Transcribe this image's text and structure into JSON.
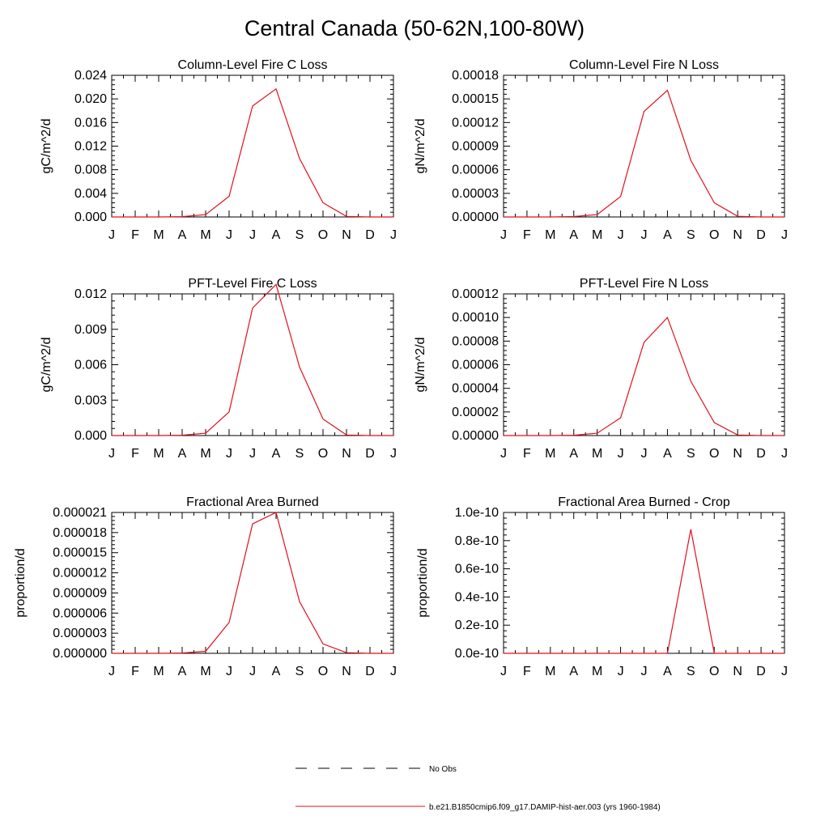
{
  "page": {
    "title": "Central Canada (50-62N,100-80W)"
  },
  "legend": {
    "entries": [
      {
        "label": "No Obs",
        "style": "dashed",
        "color": "#000000"
      },
      {
        "label": "b.e21.B1850cmip6.f09_g17.DAMIP-hist-aer.003 (yrs 1960-1984)",
        "style": "solid",
        "color": "#e0101b"
      }
    ]
  },
  "chart_data": [
    {
      "type": "line",
      "title": "Column-Level Fire C Loss",
      "ylabel": "gC/m^2/d",
      "categories": [
        "J",
        "F",
        "M",
        "A",
        "M",
        "J",
        "J",
        "A",
        "S",
        "O",
        "N",
        "D",
        "J"
      ],
      "ylim": [
        0,
        0.024
      ],
      "yticks": [
        "0.000",
        "0.004",
        "0.008",
        "0.012",
        "0.016",
        "0.020",
        "0.024"
      ],
      "series": [
        {
          "color": "#e0101b",
          "values": [
            0,
            0,
            0,
            5e-05,
            0.0004,
            0.0035,
            0.0188,
            0.0217,
            0.0099,
            0.0024,
            0.0001,
            0,
            0
          ]
        }
      ]
    },
    {
      "type": "line",
      "title": "Column-Level Fire N Loss",
      "ylabel": "gN/m^2/d",
      "categories": [
        "J",
        "F",
        "M",
        "A",
        "M",
        "J",
        "J",
        "A",
        "S",
        "O",
        "N",
        "D",
        "J"
      ],
      "ylim": [
        0,
        0.00018
      ],
      "yticks": [
        "0.00000",
        "0.00003",
        "0.00006",
        "0.00009",
        "0.00012",
        "0.00015",
        "0.00018"
      ],
      "series": [
        {
          "color": "#e0101b",
          "values": [
            0,
            0,
            0,
            5e-07,
            3e-06,
            2.6e-05,
            0.000134,
            0.000161,
            7.2e-05,
            1.8e-05,
            8e-07,
            0,
            0
          ]
        }
      ]
    },
    {
      "type": "line",
      "title": "PFT-Level Fire C Loss",
      "ylabel": "gC/m^2/d",
      "categories": [
        "J",
        "F",
        "M",
        "A",
        "M",
        "J",
        "J",
        "A",
        "S",
        "O",
        "N",
        "D",
        "J"
      ],
      "ylim": [
        0,
        0.012
      ],
      "yticks": [
        "0.000",
        "0.003",
        "0.006",
        "0.009",
        "0.012"
      ],
      "series": [
        {
          "color": "#e0101b",
          "values": [
            0,
            0,
            0,
            3e-05,
            0.0002,
            0.002,
            0.0108,
            0.0128,
            0.0058,
            0.0014,
            5e-05,
            0,
            0
          ]
        }
      ]
    },
    {
      "type": "line",
      "title": "PFT-Level Fire N Loss",
      "ylabel": "gN/m^2/d",
      "categories": [
        "J",
        "F",
        "M",
        "A",
        "M",
        "J",
        "J",
        "A",
        "S",
        "O",
        "N",
        "D",
        "J"
      ],
      "ylim": [
        0,
        0.00012
      ],
      "yticks": [
        "0.00000",
        "0.00002",
        "0.00004",
        "0.00006",
        "0.00008",
        "0.00010",
        "0.00012"
      ],
      "series": [
        {
          "color": "#e0101b",
          "values": [
            0,
            0,
            0,
            3e-07,
            2e-06,
            1.5e-05,
            7.9e-05,
            0.0001,
            4.6e-05,
            1.1e-05,
            5e-07,
            0,
            0
          ]
        }
      ]
    },
    {
      "type": "line",
      "title": "Fractional Area Burned",
      "ylabel": "proportion/d",
      "categories": [
        "J",
        "F",
        "M",
        "A",
        "M",
        "J",
        "J",
        "A",
        "S",
        "O",
        "N",
        "D",
        "J"
      ],
      "ylim": [
        0,
        2.1e-05
      ],
      "yticks": [
        "0.000000",
        "0.000003",
        "0.000006",
        "0.000009",
        "0.000012",
        "0.000015",
        "0.000018",
        "0.000021"
      ],
      "series": [
        {
          "color": "#e0101b",
          "values": [
            0,
            0,
            0,
            5e-08,
            3e-07,
            4.6e-06,
            1.93e-05,
            2.1e-05,
            7.7e-06,
            1.4e-06,
            1e-07,
            0,
            0
          ]
        }
      ]
    },
    {
      "type": "line",
      "title": "Fractional Area Burned - Crop",
      "ylabel": "proportion/d",
      "categories": [
        "J",
        "F",
        "M",
        "A",
        "M",
        "J",
        "J",
        "A",
        "S",
        "O",
        "N",
        "D",
        "J"
      ],
      "ylim": [
        0,
        1e-10
      ],
      "yticks": [
        "0.0e-10",
        "0.2e-10",
        "0.4e-10",
        "0.6e-10",
        "0.8e-10",
        "1.0e-10"
      ],
      "series": [
        {
          "color": "#e0101b",
          "values": [
            0,
            0,
            0,
            0,
            0,
            0,
            0,
            0,
            8.8e-11,
            0,
            0,
            0,
            0
          ]
        }
      ]
    }
  ]
}
